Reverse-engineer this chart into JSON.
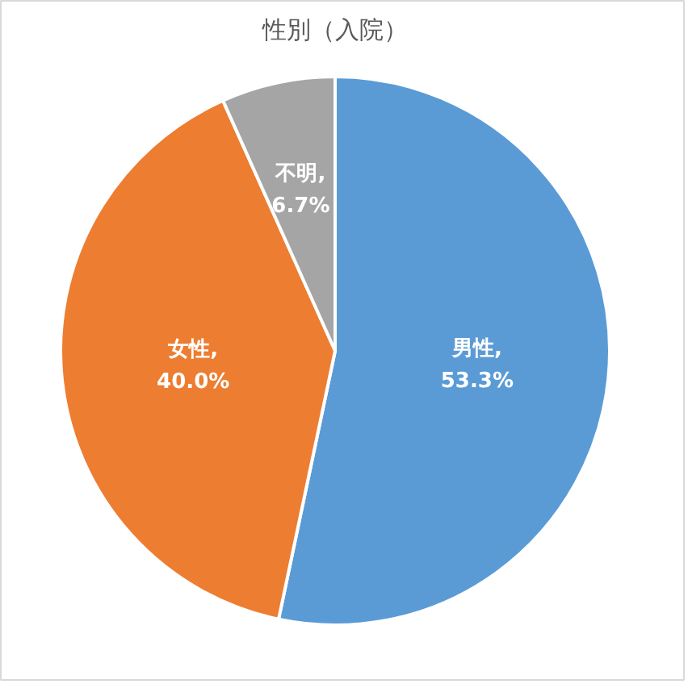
{
  "chart_data": {
    "type": "pie",
    "title": "性別（入院）",
    "categories": [
      "男性",
      "女性",
      "不明"
    ],
    "values": [
      53.3,
      40.0,
      6.7
    ],
    "colors": [
      "#5b9bd5",
      "#ed7d31",
      "#a5a5a5"
    ],
    "value_labels": [
      ",\n53.3%",
      ",\n40.0%",
      ",\n6.7%"
    ],
    "legend": false
  }
}
